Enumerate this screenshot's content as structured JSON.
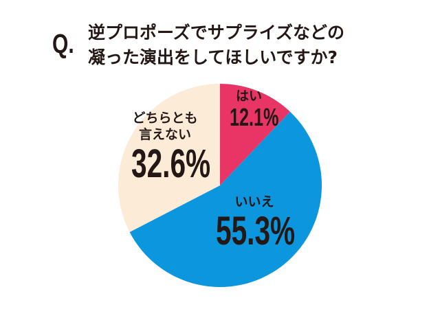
{
  "question_mark": "Q.",
  "title": "逆プロポーズでサプライズなどの\n凝った演出をしてほしいですか?",
  "chart_data": {
    "type": "pie",
    "title": "逆プロポーズでサプライズなどの凝った演出をしてほしいですか?",
    "start": "12 o'clock, clockwise",
    "slices": [
      {
        "label": "はい",
        "value": 12.1,
        "display": "12.1%",
        "color": "#e83566"
      },
      {
        "label": "いいえ",
        "value": 55.3,
        "display": "55.3%",
        "color": "#0b96dd"
      },
      {
        "label": "どちらとも\n言えない",
        "value": 32.6,
        "display": "32.6%",
        "color": "#fcebd7"
      }
    ]
  }
}
